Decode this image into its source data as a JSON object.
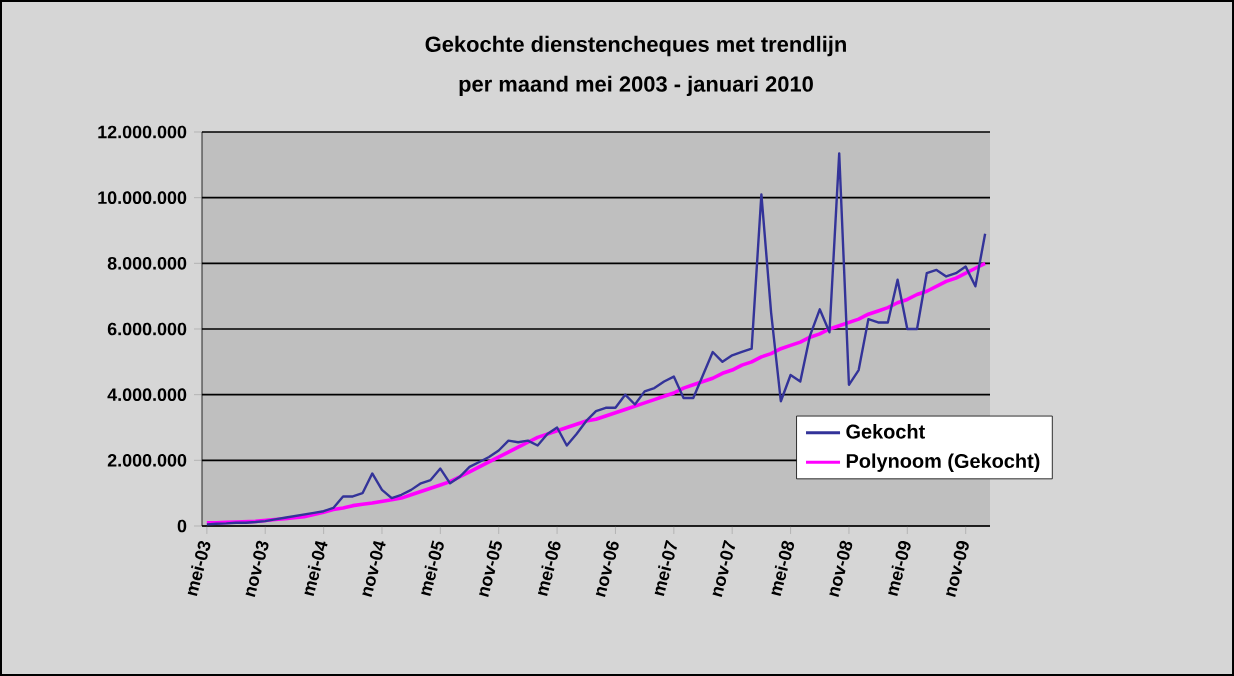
{
  "chart_data": {
    "type": "line",
    "title": "Gekochte dienstencheques met trendlijn\nper maand  mei 2003 - januari 2010",
    "categories": [
      "mei-03",
      null,
      null,
      null,
      null,
      null,
      "nov-03",
      null,
      null,
      null,
      null,
      null,
      "mei-04",
      null,
      null,
      null,
      null,
      null,
      "nov-04",
      null,
      null,
      null,
      null,
      null,
      "mei-05",
      null,
      null,
      null,
      null,
      null,
      "nov-05",
      null,
      null,
      null,
      null,
      null,
      "mei-06",
      null,
      null,
      null,
      null,
      null,
      "nov-06",
      null,
      null,
      null,
      null,
      null,
      "mei-07",
      null,
      null,
      null,
      null,
      null,
      "nov-07",
      null,
      null,
      null,
      null,
      null,
      "mei-08",
      null,
      null,
      null,
      null,
      null,
      "nov-08",
      null,
      null,
      null,
      null,
      null,
      "mei-09",
      null,
      null,
      null,
      null,
      null,
      "nov-09",
      null,
      null
    ],
    "series": [
      {
        "name": "Gekocht",
        "color": "#333399",
        "values": [
          50000,
          70000,
          80000,
          100000,
          100000,
          120000,
          150000,
          200000,
          250000,
          300000,
          350000,
          400000,
          450000,
          550000,
          900000,
          900000,
          1000000,
          1600000,
          1100000,
          850000,
          950000,
          1100000,
          1300000,
          1400000,
          1750000,
          1300000,
          1500000,
          1800000,
          1950000,
          2100000,
          2300000,
          2600000,
          2550000,
          2600000,
          2450000,
          2800000,
          3000000,
          2450000,
          2800000,
          3200000,
          3500000,
          3600000,
          3600000,
          4000000,
          3700000,
          4100000,
          4200000,
          4400000,
          4550000,
          3900000,
          3900000,
          4600000,
          5300000,
          5000000,
          5200000,
          5300000,
          5400000,
          10100000,
          6500000,
          3800000,
          4600000,
          4400000,
          5800000,
          6600000,
          5900000,
          11350000,
          4300000,
          4750000,
          6300000,
          6200000,
          6200000,
          7500000,
          6000000,
          6000000,
          7700000,
          7800000,
          7600000,
          7700000,
          7900000,
          7300000,
          8900000
        ]
      },
      {
        "name": "Polynoom (Gekocht)",
        "color": "#ff00ff",
        "values": [
          100000,
          100000,
          110000,
          120000,
          130000,
          140000,
          170000,
          200000,
          220000,
          250000,
          280000,
          350000,
          420000,
          500000,
          550000,
          620000,
          660000,
          700000,
          750000,
          800000,
          850000,
          950000,
          1050000,
          1150000,
          1250000,
          1350000,
          1500000,
          1650000,
          1800000,
          1950000,
          2100000,
          2250000,
          2400000,
          2550000,
          2700000,
          2800000,
          2900000,
          3000000,
          3100000,
          3200000,
          3250000,
          3350000,
          3450000,
          3550000,
          3650000,
          3750000,
          3850000,
          3950000,
          4050000,
          4200000,
          4300000,
          4400000,
          4500000,
          4650000,
          4750000,
          4900000,
          5000000,
          5150000,
          5250000,
          5400000,
          5500000,
          5600000,
          5750000,
          5850000,
          6000000,
          6100000,
          6200000,
          6300000,
          6450000,
          6550000,
          6650000,
          6800000,
          6900000,
          7050000,
          7150000,
          7300000,
          7450000,
          7550000,
          7700000,
          7850000,
          8000000
        ]
      }
    ],
    "ylim": [
      0,
      12000000
    ],
    "yticks": [
      {
        "value": 0,
        "label": "0"
      },
      {
        "value": 2000000,
        "label": "2.000.000"
      },
      {
        "value": 4000000,
        "label": "4.000.000"
      },
      {
        "value": 6000000,
        "label": "6.000.000"
      },
      {
        "value": 8000000,
        "label": "8.000.000"
      },
      {
        "value": 10000000,
        "label": "10.000.000"
      },
      {
        "value": 12000000,
        "label": "12.000.000"
      }
    ],
    "grid": "y",
    "legend": "bottom right"
  }
}
